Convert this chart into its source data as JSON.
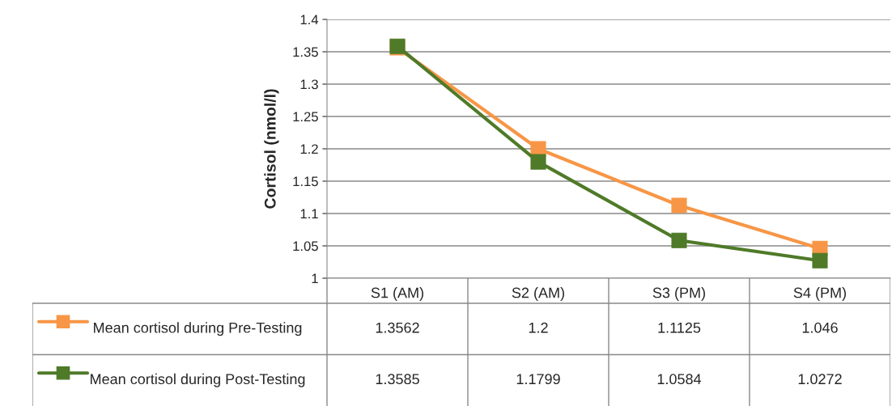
{
  "chart_data": {
    "type": "line",
    "ylabel": "Cortisol (nmol/l)",
    "categories": [
      "S1 (AM)",
      "S2 (AM)",
      "S3 (PM)",
      "S4 (PM)"
    ],
    "series": [
      {
        "name": "Mean cortisol during Pre-Testing",
        "color": "#f79646",
        "values": [
          1.3562,
          1.2,
          1.1125,
          1.046
        ]
      },
      {
        "name": "Mean cortisol during Post-Testing",
        "color": "#4f7a28",
        "values": [
          1.3585,
          1.1799,
          1.0584,
          1.0272
        ]
      }
    ],
    "ylim": [
      1,
      1.4
    ],
    "yticks": [
      1,
      1.05,
      1.1,
      1.15,
      1.2,
      1.25,
      1.3,
      1.35,
      1.4
    ],
    "grid": "y",
    "legend": "bottom",
    "marker": "square",
    "line_style": "solid",
    "data_labels": true
  }
}
